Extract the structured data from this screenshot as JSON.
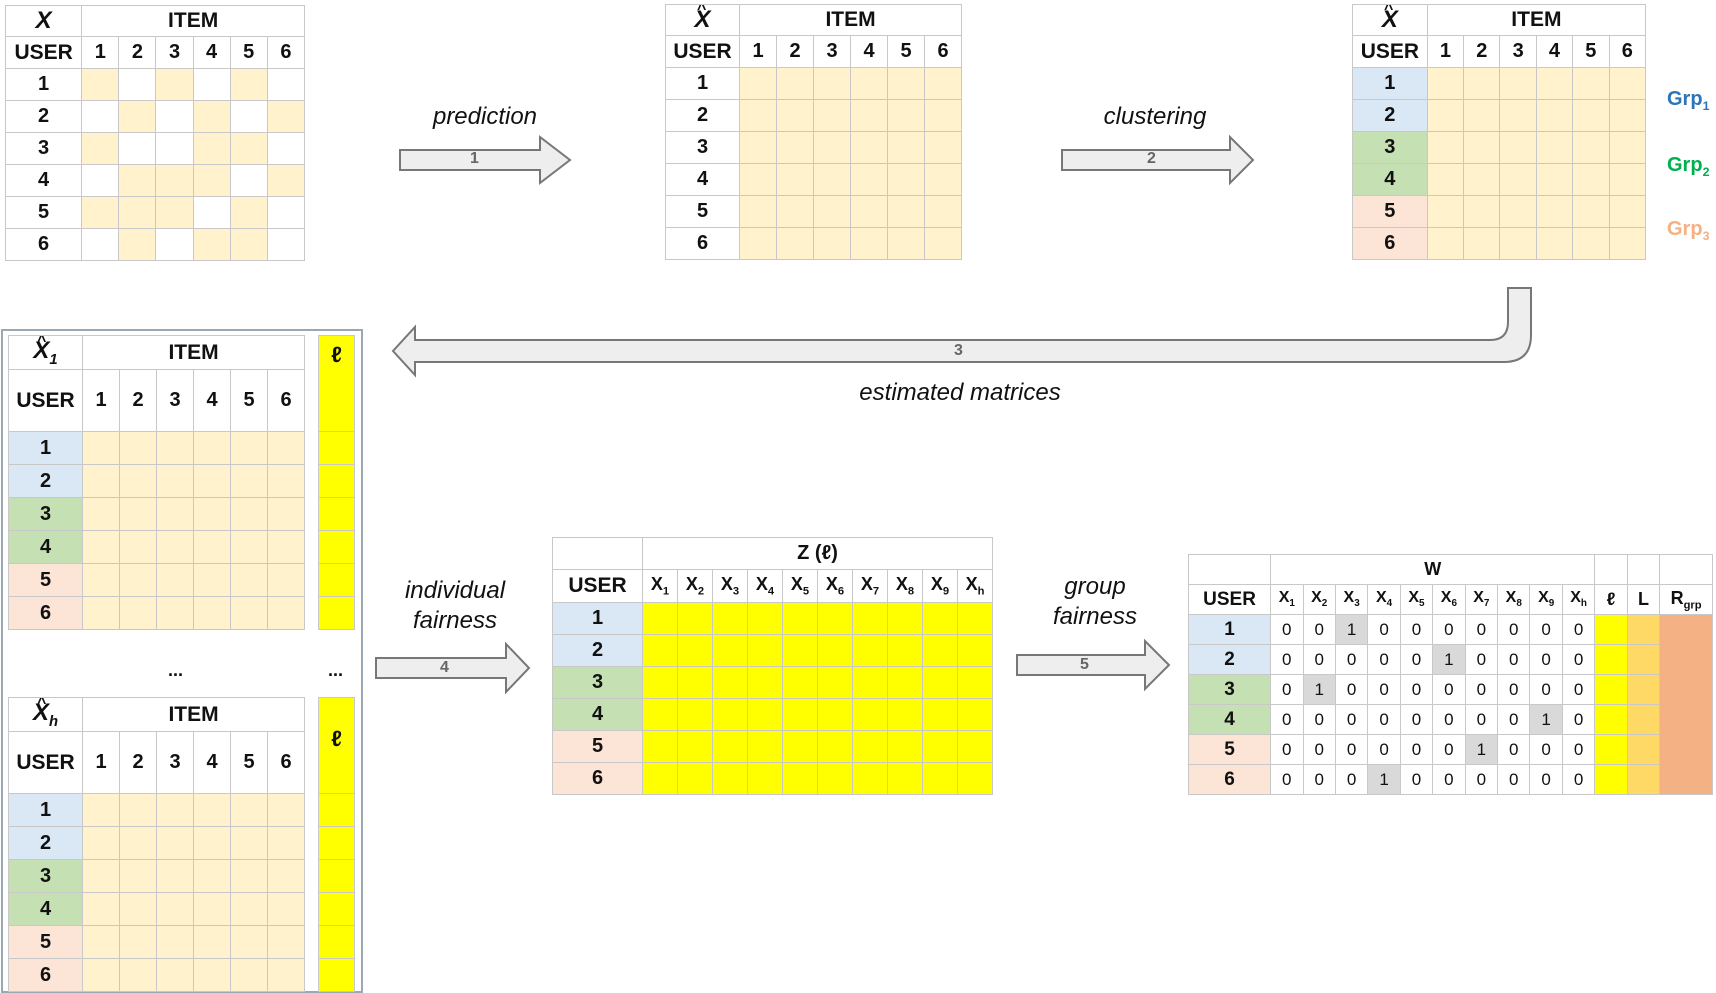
{
  "colors": {
    "cell": "#fff2cc",
    "yellow": "#ffff00",
    "grp1": "#dae8f5",
    "grp2": "#c5e0b3",
    "grp3": "#fce4d6",
    "grp1_text": "#2e75b6",
    "grp2_text": "#00b050",
    "grp3_text": "#f4b183",
    "arrow": "#eeeeee",
    "gray_cell": "#d9d9d9",
    "L_col": "#ffd966",
    "R_col": "#f4b183"
  },
  "headers": {
    "item": "ITEM",
    "user": "USER"
  },
  "indices": [
    "1",
    "2",
    "3",
    "4",
    "5",
    "6"
  ],
  "matrices": {
    "x": "X",
    "x_hat": "X",
    "x_hat_1": "X",
    "x_hat_1_sub": "1",
    "x_hat_h": "X",
    "x_hat_h_sub": "h",
    "ell": "ℓ",
    "dots": "..."
  },
  "groups": [
    {
      "name": "Grp",
      "sub": "1"
    },
    {
      "name": "Grp",
      "sub": "2"
    },
    {
      "name": "Grp",
      "sub": "3"
    }
  ],
  "arrows": [
    {
      "number": "1",
      "label": "prediction"
    },
    {
      "number": "2",
      "label": "clustering"
    },
    {
      "number": "3",
      "label": "estimated matrices"
    },
    {
      "number": "4",
      "label_line1": "individual",
      "label_line2": "fairness"
    },
    {
      "number": "5",
      "label_line1": "group",
      "label_line2": "fairness"
    }
  ],
  "z_table": {
    "title": "Z (ℓ)"
  },
  "w_table": {
    "title": "W",
    "ell": "ℓ",
    "L": "L",
    "R": "R",
    "R_sub": "grp",
    "rows": [
      [
        "0",
        "0",
        "1",
        "0",
        "0",
        "0",
        "0",
        "0",
        "0",
        "0"
      ],
      [
        "0",
        "0",
        "0",
        "0",
        "0",
        "1",
        "0",
        "0",
        "0",
        "0"
      ],
      [
        "0",
        "1",
        "0",
        "0",
        "0",
        "0",
        "0",
        "0",
        "0",
        "0"
      ],
      [
        "0",
        "0",
        "0",
        "0",
        "0",
        "0",
        "0",
        "0",
        "1",
        "0"
      ],
      [
        "0",
        "0",
        "0",
        "0",
        "0",
        "0",
        "1",
        "0",
        "0",
        "0"
      ],
      [
        "0",
        "0",
        "0",
        "1",
        "0",
        "0",
        "0",
        "0",
        "0",
        "0"
      ]
    ]
  },
  "x_columns": [
    {
      "base": "X",
      "sub": "1"
    },
    {
      "base": "X",
      "sub": "2"
    },
    {
      "base": "X",
      "sub": "3"
    },
    {
      "base": "X",
      "sub": "4"
    },
    {
      "base": "X",
      "sub": "5"
    },
    {
      "base": "X",
      "sub": "6"
    },
    {
      "base": "X",
      "sub": "7"
    },
    {
      "base": "X",
      "sub": "8"
    },
    {
      "base": "X",
      "sub": "9"
    },
    {
      "base": "X",
      "sub": "h"
    }
  ]
}
